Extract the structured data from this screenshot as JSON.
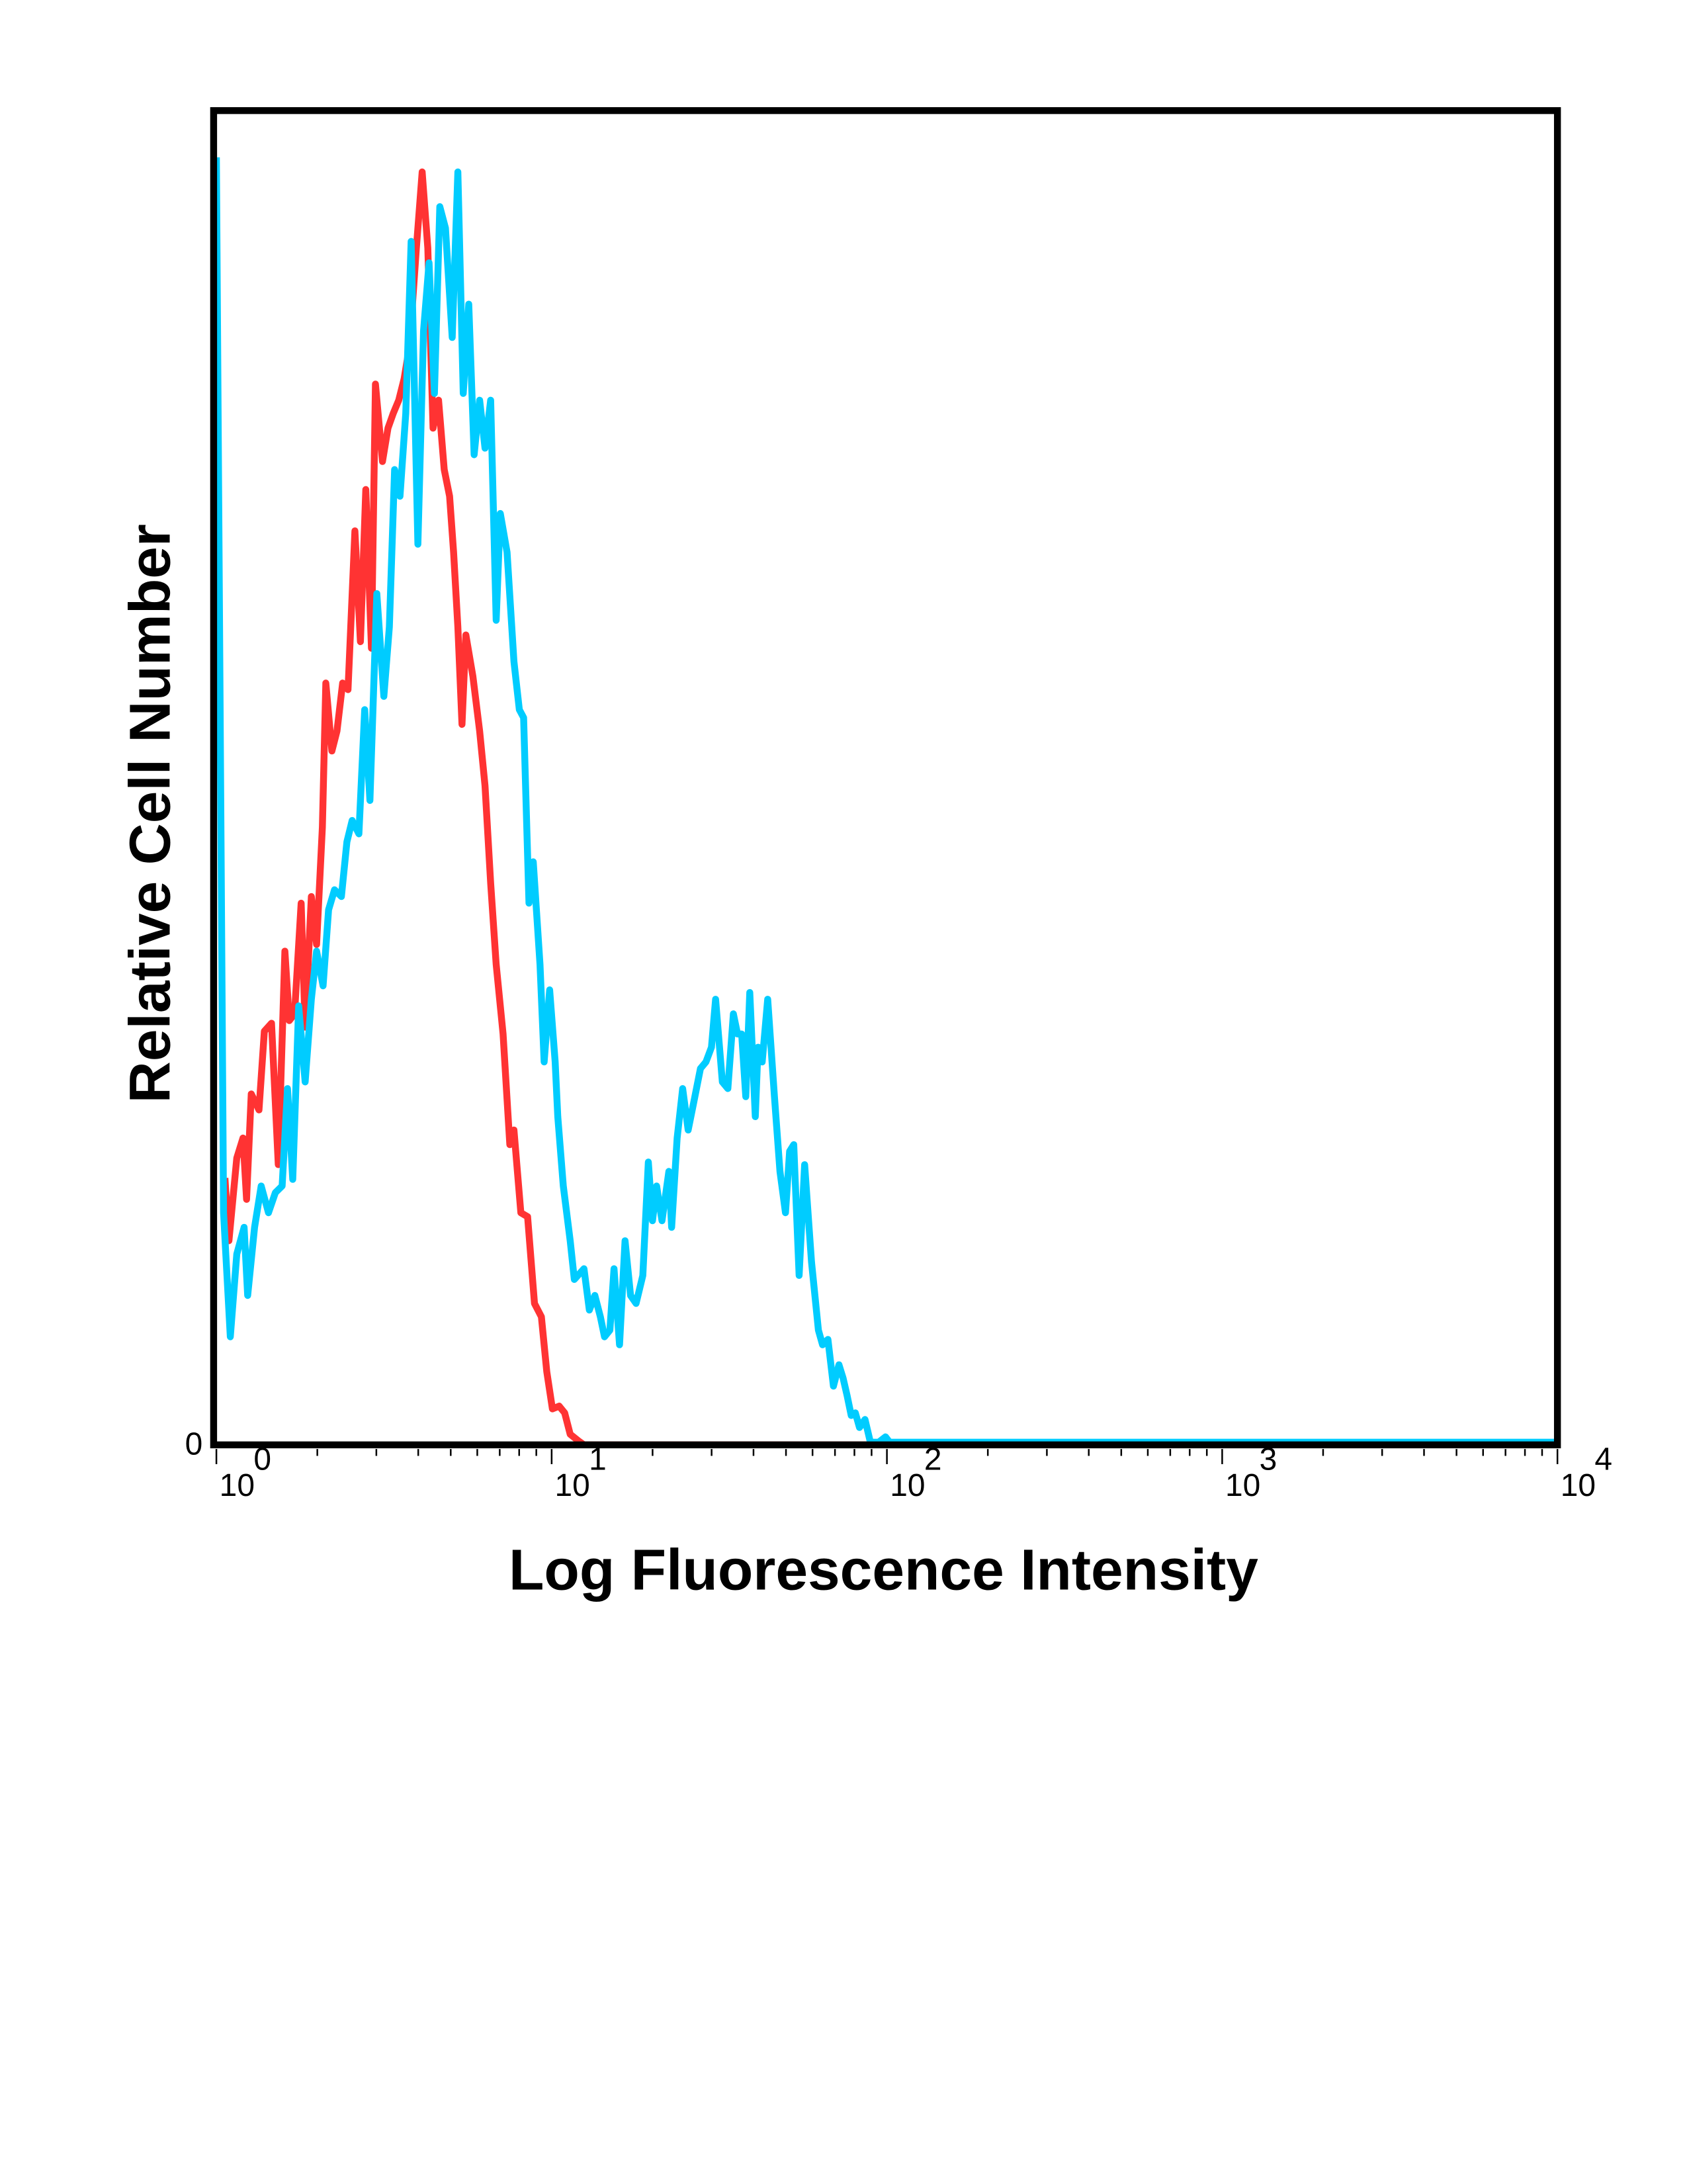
{
  "chart_data": {
    "type": "line",
    "title": "",
    "xlabel": "Log Fluorescence Intensity",
    "ylabel": "Relative Cell Number",
    "x_scale": "log",
    "xlim": [
      1,
      10000
    ],
    "ylim": [
      0,
      100
    ],
    "grid": false,
    "legend": "none",
    "y_tick_labels": [
      "0"
    ],
    "x_ticks": [
      {
        "value": 1,
        "base": "10",
        "exponent": "0"
      },
      {
        "value": 10,
        "base": "10",
        "exponent": "1"
      },
      {
        "value": 100,
        "base": "10",
        "exponent": "2"
      },
      {
        "value": 1000,
        "base": "10",
        "exponent": "3"
      },
      {
        "value": 10000,
        "base": "10",
        "exponent": "4"
      }
    ],
    "series": [
      {
        "color": "#ff3333",
        "points": [
          [
            1.06,
            20
          ],
          [
            1.09,
            15.3
          ],
          [
            1.15,
            21.5
          ],
          [
            1.2,
            23
          ],
          [
            1.23,
            18.4
          ],
          [
            1.27,
            26.3
          ],
          [
            1.34,
            25.1
          ],
          [
            1.39,
            31
          ],
          [
            1.46,
            31.6
          ],
          [
            1.53,
            21
          ],
          [
            1.6,
            37
          ],
          [
            1.65,
            31.8
          ],
          [
            1.71,
            32.3
          ],
          [
            1.79,
            40.6
          ],
          [
            1.84,
            31.3
          ],
          [
            1.92,
            41.1
          ],
          [
            1.99,
            37.5
          ],
          [
            2.07,
            46.3
          ],
          [
            2.12,
            57.1
          ],
          [
            2.21,
            52
          ],
          [
            2.29,
            53.5
          ],
          [
            2.38,
            57.1
          ],
          [
            2.47,
            56.6
          ],
          [
            2.59,
            68.5
          ],
          [
            2.69,
            60.2
          ],
          [
            2.79,
            71.6
          ],
          [
            2.9,
            59.7
          ],
          [
            2.98,
            79.5
          ],
          [
            3.13,
            73.7
          ],
          [
            3.25,
            76.2
          ],
          [
            3.37,
            77.3
          ],
          [
            3.5,
            78.3
          ],
          [
            3.63,
            79.9
          ],
          [
            3.77,
            82.4
          ],
          [
            3.95,
            89.7
          ],
          [
            4.11,
            95.4
          ],
          [
            4.27,
            89.7
          ],
          [
            4.43,
            76.2
          ],
          [
            4.6,
            78.3
          ],
          [
            4.78,
            73.1
          ],
          [
            4.96,
            71.1
          ],
          [
            5.1,
            66.9
          ],
          [
            5.25,
            61.3
          ],
          [
            5.4,
            54
          ],
          [
            5.55,
            60.7
          ],
          [
            5.82,
            57.6
          ],
          [
            6.1,
            53.5
          ],
          [
            6.33,
            49.4
          ],
          [
            6.58,
            42.1
          ],
          [
            6.83,
            36
          ],
          [
            7.16,
            30.8
          ],
          [
            7.5,
            22.5
          ],
          [
            7.72,
            23.6
          ],
          [
            8.09,
            17.4
          ],
          [
            8.48,
            17.1
          ],
          [
            8.89,
            10.6
          ],
          [
            9.32,
            9.6
          ],
          [
            9.67,
            5.5
          ],
          [
            10.05,
            2.7
          ],
          [
            10.53,
            2.9
          ],
          [
            10.94,
            2.4
          ],
          [
            11.36,
            0.8
          ],
          [
            12.02,
            0.3
          ],
          [
            12.48,
            0
          ],
          [
            10000,
            0
          ]
        ]
      },
      {
        "color": "#00ccff",
        "points": [
          [
            1,
            96.5
          ],
          [
            1.05,
            17.4
          ],
          [
            1.1,
            8.1
          ],
          [
            1.15,
            14.3
          ],
          [
            1.21,
            16.3
          ],
          [
            1.24,
            11.2
          ],
          [
            1.3,
            16.3
          ],
          [
            1.36,
            19.4
          ],
          [
            1.43,
            17.4
          ],
          [
            1.5,
            18.9
          ],
          [
            1.57,
            19.4
          ],
          [
            1.63,
            26.7
          ],
          [
            1.69,
            19.9
          ],
          [
            1.76,
            32.9
          ],
          [
            1.84,
            27.2
          ],
          [
            1.92,
            33.4
          ],
          [
            1.99,
            37
          ],
          [
            2.08,
            34.4
          ],
          [
            2.16,
            40.1
          ],
          [
            2.25,
            41.6
          ],
          [
            2.36,
            41.1
          ],
          [
            2.45,
            45.2
          ],
          [
            2.54,
            46.8
          ],
          [
            2.66,
            45.8
          ],
          [
            2.77,
            55.1
          ],
          [
            2.87,
            48.3
          ],
          [
            3.01,
            63.8
          ],
          [
            3.16,
            56.1
          ],
          [
            3.28,
            61.3
          ],
          [
            3.4,
            73.1
          ],
          [
            3.53,
            71.1
          ],
          [
            3.67,
            77.3
          ],
          [
            3.81,
            90.2
          ],
          [
            3.99,
            67.5
          ],
          [
            4.15,
            83.5
          ],
          [
            4.31,
            88.6
          ],
          [
            4.47,
            78.8
          ],
          [
            4.64,
            92.8
          ],
          [
            4.82,
            91.2
          ],
          [
            5.05,
            83
          ],
          [
            5.25,
            95.4
          ],
          [
            5.45,
            78.8
          ],
          [
            5.66,
            85.5
          ],
          [
            5.87,
            74.2
          ],
          [
            6.1,
            78.3
          ],
          [
            6.33,
            74.7
          ],
          [
            6.58,
            78.3
          ],
          [
            6.83,
            61.8
          ],
          [
            7.03,
            69.8
          ],
          [
            7.36,
            66.9
          ],
          [
            7.72,
            58.7
          ],
          [
            8.01,
            55.1
          ],
          [
            8.25,
            54.5
          ],
          [
            8.56,
            40.6
          ],
          [
            8.81,
            43.7
          ],
          [
            9.23,
            36
          ],
          [
            9.5,
            28.7
          ],
          [
            9.86,
            34.1
          ],
          [
            10.24,
            28.7
          ],
          [
            10.43,
            24.6
          ],
          [
            10.83,
            19.4
          ],
          [
            11.36,
            15.3
          ],
          [
            11.68,
            12.4
          ],
          [
            12.48,
            13.2
          ],
          [
            12.96,
            10.1
          ],
          [
            13.45,
            11.2
          ],
          [
            13.97,
            9.6
          ],
          [
            14.38,
            8.1
          ],
          [
            14.92,
            8.6
          ],
          [
            15.35,
            13.2
          ],
          [
            15.94,
            7.5
          ],
          [
            16.55,
            15.3
          ],
          [
            17.19,
            11.2
          ],
          [
            17.85,
            10.6
          ],
          [
            18.71,
            12.7
          ],
          [
            19.43,
            21.2
          ],
          [
            19.98,
            16.8
          ],
          [
            20.56,
            19.4
          ],
          [
            21.34,
            16.8
          ],
          [
            22.37,
            20.5
          ],
          [
            22.8,
            16.3
          ],
          [
            23.67,
            23
          ],
          [
            24.58,
            26.7
          ],
          [
            25.53,
            23.6
          ],
          [
            26.5,
            25.6
          ],
          [
            27.78,
            28.2
          ],
          [
            28.85,
            28.7
          ],
          [
            29.96,
            29.8
          ],
          [
            30.82,
            33.4
          ],
          [
            32.3,
            27.2
          ],
          [
            33.54,
            26.7
          ],
          [
            34.83,
            32.3
          ],
          [
            35.83,
            30.8
          ],
          [
            36.86,
            30.8
          ],
          [
            37.92,
            26.1
          ],
          [
            38.99,
            33.9
          ],
          [
            40.49,
            24.6
          ],
          [
            41.26,
            29.8
          ],
          [
            42.45,
            28.7
          ],
          [
            44.08,
            33.4
          ],
          [
            46.2,
            26.1
          ],
          [
            47.97,
            20.5
          ],
          [
            49.81,
            17.4
          ],
          [
            51.24,
            22
          ],
          [
            52.71,
            22.5
          ],
          [
            54.73,
            12.7
          ],
          [
            56.84,
            21
          ],
          [
            59.59,
            13.7
          ],
          [
            62.46,
            8.6
          ],
          [
            64.25,
            7.5
          ],
          [
            66.71,
            7.9
          ],
          [
            69.27,
            4.4
          ],
          [
            71.93,
            6
          ],
          [
            73.98,
            5
          ],
          [
            76.1,
            3.7
          ],
          [
            78.29,
            2.2
          ],
          [
            80.51,
            2.4
          ],
          [
            82.82,
            1.3
          ],
          [
            86.01,
            1.9
          ],
          [
            89.3,
            0.2
          ],
          [
            94.52,
            0.2
          ],
          [
            99.06,
            0.6
          ],
          [
            101.9,
            0.2
          ],
          [
            10000,
            0.2
          ]
        ]
      }
    ]
  }
}
